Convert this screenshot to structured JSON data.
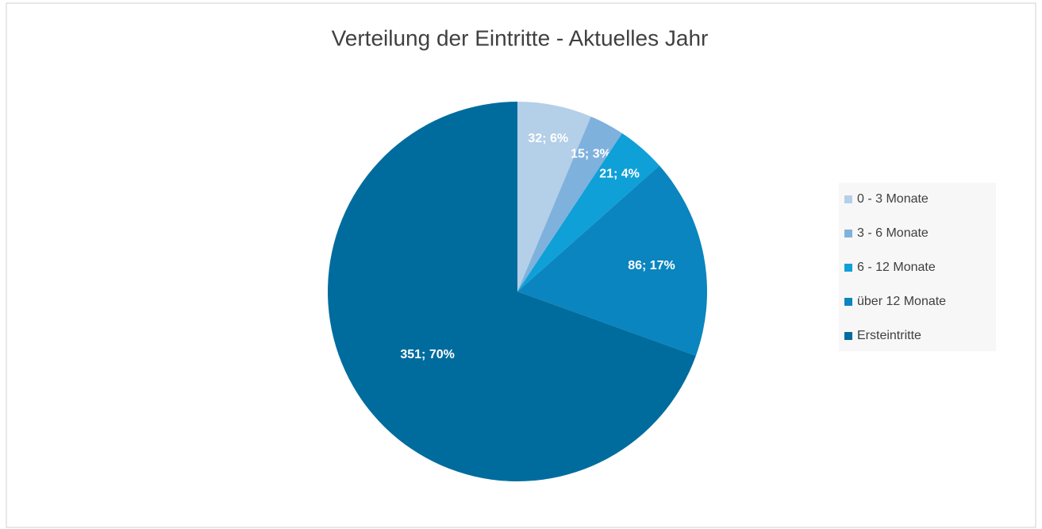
{
  "chart_data": {
    "type": "pie",
    "title": "Verteilung der Eintritte - Aktuelles Jahr",
    "categories": [
      "0 - 3 Monate",
      "3 - 6 Monate",
      "6 - 12 Monate",
      "über 12 Monate",
      "Ersteintritte"
    ],
    "values": [
      32,
      15,
      21,
      86,
      351
    ],
    "value_labels": [
      "32; 6%",
      "15; 3%",
      "21; 4%",
      "86; 17%",
      "351; 70%"
    ],
    "colors": [
      "#b4cfe8",
      "#7fb1dd",
      "#0fa0d8",
      "#0a85bf",
      "#006c9e"
    ],
    "legend": "right"
  }
}
